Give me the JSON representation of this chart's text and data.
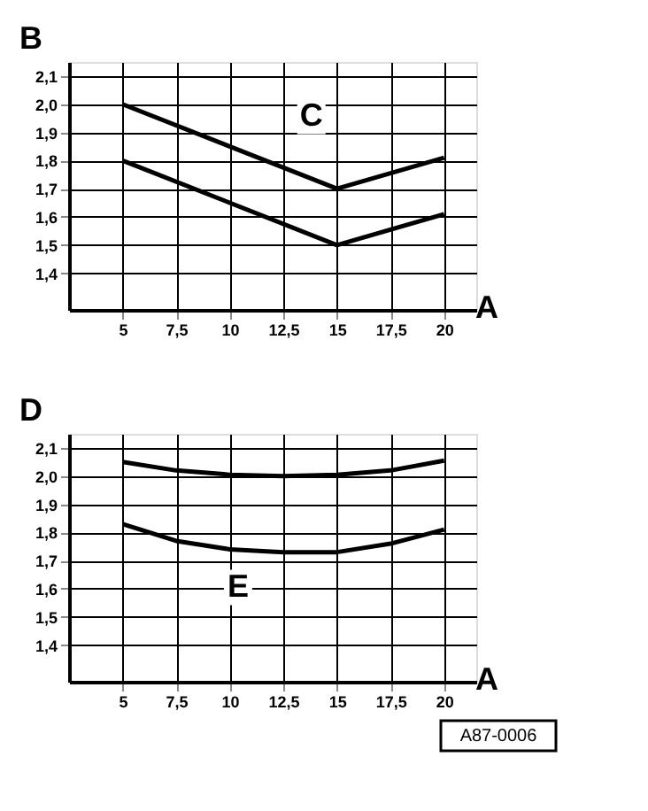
{
  "chart_data": [
    {
      "type": "line",
      "ylabel": "B",
      "xlabel": "A",
      "x": [
        5,
        15,
        20
      ],
      "series": [
        {
          "color": "#000000",
          "values": [
            2.0,
            1.7,
            1.81
          ]
        },
        {
          "color": "#000000",
          "values": [
            1.8,
            1.5,
            1.61
          ]
        }
      ],
      "xlim": [
        2.5,
        21.5
      ],
      "ylim": [
        1.27,
        2.15
      ],
      "xticks": [
        5,
        {
          "value": 7.5,
          "label": "7,5"
        },
        10,
        {
          "value": 12.5,
          "label": "12,5"
        },
        15,
        {
          "value": 17.5,
          "label": "17,5"
        },
        20
      ],
      "yticks": [
        {
          "value": 1.4,
          "label": "1,4"
        },
        {
          "value": 1.5,
          "label": "1,5"
        },
        {
          "value": 1.6,
          "label": "1,6"
        },
        {
          "value": 1.7,
          "label": "1,7"
        },
        {
          "value": 1.8,
          "label": "1,8"
        },
        {
          "value": 1.9,
          "label": "1,9"
        },
        {
          "value": 2.0,
          "label": "2,0"
        },
        {
          "value": 2.1,
          "label": "2,1"
        }
      ],
      "grid": true,
      "marker": "none",
      "line_style": "solid",
      "annotations": [
        "C"
      ]
    },
    {
      "type": "line",
      "ylabel": "D",
      "xlabel": "A",
      "x": [
        5,
        7.5,
        10,
        12.5,
        15,
        17.5,
        20
      ],
      "series": [
        {
          "color": "#000000",
          "values": [
            2.05,
            2.02,
            2.005,
            2.0,
            2.005,
            2.02,
            2.055
          ]
        },
        {
          "color": "#000000",
          "values": [
            1.83,
            1.77,
            1.74,
            1.73,
            1.73,
            1.76,
            1.81
          ]
        }
      ],
      "xlim": [
        2.5,
        21.5
      ],
      "ylim": [
        1.27,
        2.15
      ],
      "xticks": [
        5,
        {
          "value": 7.5,
          "label": "7,5"
        },
        10,
        {
          "value": 12.5,
          "label": "12,5"
        },
        15,
        {
          "value": 17.5,
          "label": "17,5"
        },
        20
      ],
      "yticks": [
        {
          "value": 1.4,
          "label": "1,4"
        },
        {
          "value": 1.5,
          "label": "1,5"
        },
        {
          "value": 1.6,
          "label": "1,6"
        },
        {
          "value": 1.7,
          "label": "1,7"
        },
        {
          "value": 1.8,
          "label": "1,8"
        },
        {
          "value": 1.9,
          "label": "1,9"
        },
        {
          "value": 2.0,
          "label": "2,0"
        },
        {
          "value": 2.1,
          "label": "2,1"
        }
      ],
      "grid": true,
      "marker": "none",
      "line_style": "solid",
      "annotations": [
        "E",
        "A87-0006"
      ]
    }
  ]
}
